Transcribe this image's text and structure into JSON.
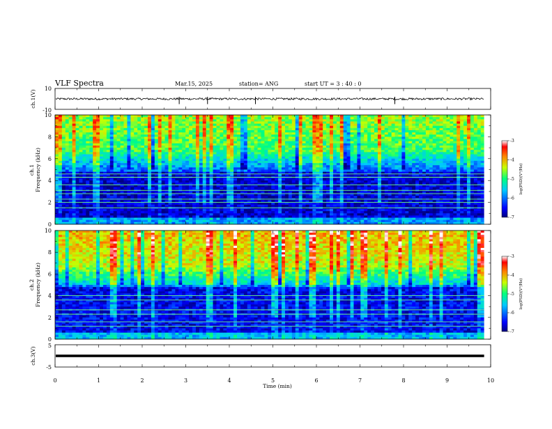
{
  "header": {
    "title": "VLF Spectra",
    "date": "Mar.15, 2025",
    "station": "station= ANG",
    "start": "start UT =  3 : 40 : 0"
  },
  "chart_data": [
    {
      "type": "line",
      "panel": "ch1-waveform",
      "ylabel": "ch.1(V)",
      "ylim": [
        -10,
        10
      ],
      "y_ticks": [
        "10",
        "-10"
      ],
      "baseline": 0,
      "noise_amplitude": 1.0,
      "spikes": [
        2.85,
        3.5,
        4.6,
        7.8
      ]
    },
    {
      "type": "heatmap",
      "panel": "ch1-spectrogram",
      "ylabel_line1": "ch.1",
      "ylabel_line2": "Frequency (kHz)",
      "ylim": [
        0,
        10
      ],
      "y_ticks": [
        "0",
        "2",
        "4",
        "6",
        "8",
        "10"
      ],
      "colorbar": {
        "label": "log(PSD)(V²/Hz)",
        "range": [
          -7,
          -3
        ],
        "ticks": [
          "-3",
          "-4",
          "-5",
          "-6",
          "-7"
        ]
      },
      "line_frequencies_khz": [
        4.6,
        4.3,
        3.6,
        3.1,
        2.8,
        2.3,
        2.0,
        1.5
      ],
      "intensity_bias": 0.0
    },
    {
      "type": "heatmap",
      "panel": "ch2-spectrogram",
      "ylabel_line1": "ch.2",
      "ylabel_line2": "Frequency (kHz)",
      "ylim": [
        0,
        10
      ],
      "y_ticks": [
        "0",
        "2",
        "4",
        "6",
        "8",
        "10"
      ],
      "colorbar": {
        "label": "log(PSD)(V²/Hz)",
        "range": [
          -7,
          -3
        ],
        "ticks": [
          "-3",
          "-4",
          "-5",
          "-6",
          "-7"
        ]
      },
      "line_frequencies_khz": [
        4.0,
        3.6,
        2.7,
        2.3,
        1.6,
        1.2
      ],
      "intensity_bias": 0.12
    },
    {
      "type": "line",
      "panel": "ch3-waveform",
      "ylabel": "ch.3(V)",
      "ylim": [
        -5,
        5
      ],
      "y_ticks": [
        "5",
        "-5"
      ],
      "baseline": 0,
      "noise_amplitude": 0.0
    }
  ],
  "x_axis": {
    "label": "Time (min)",
    "range": [
      0,
      10
    ],
    "data_end": 9.85,
    "ticks": [
      "0",
      "1",
      "2",
      "3",
      "4",
      "5",
      "6",
      "7",
      "8",
      "9",
      "10"
    ]
  }
}
